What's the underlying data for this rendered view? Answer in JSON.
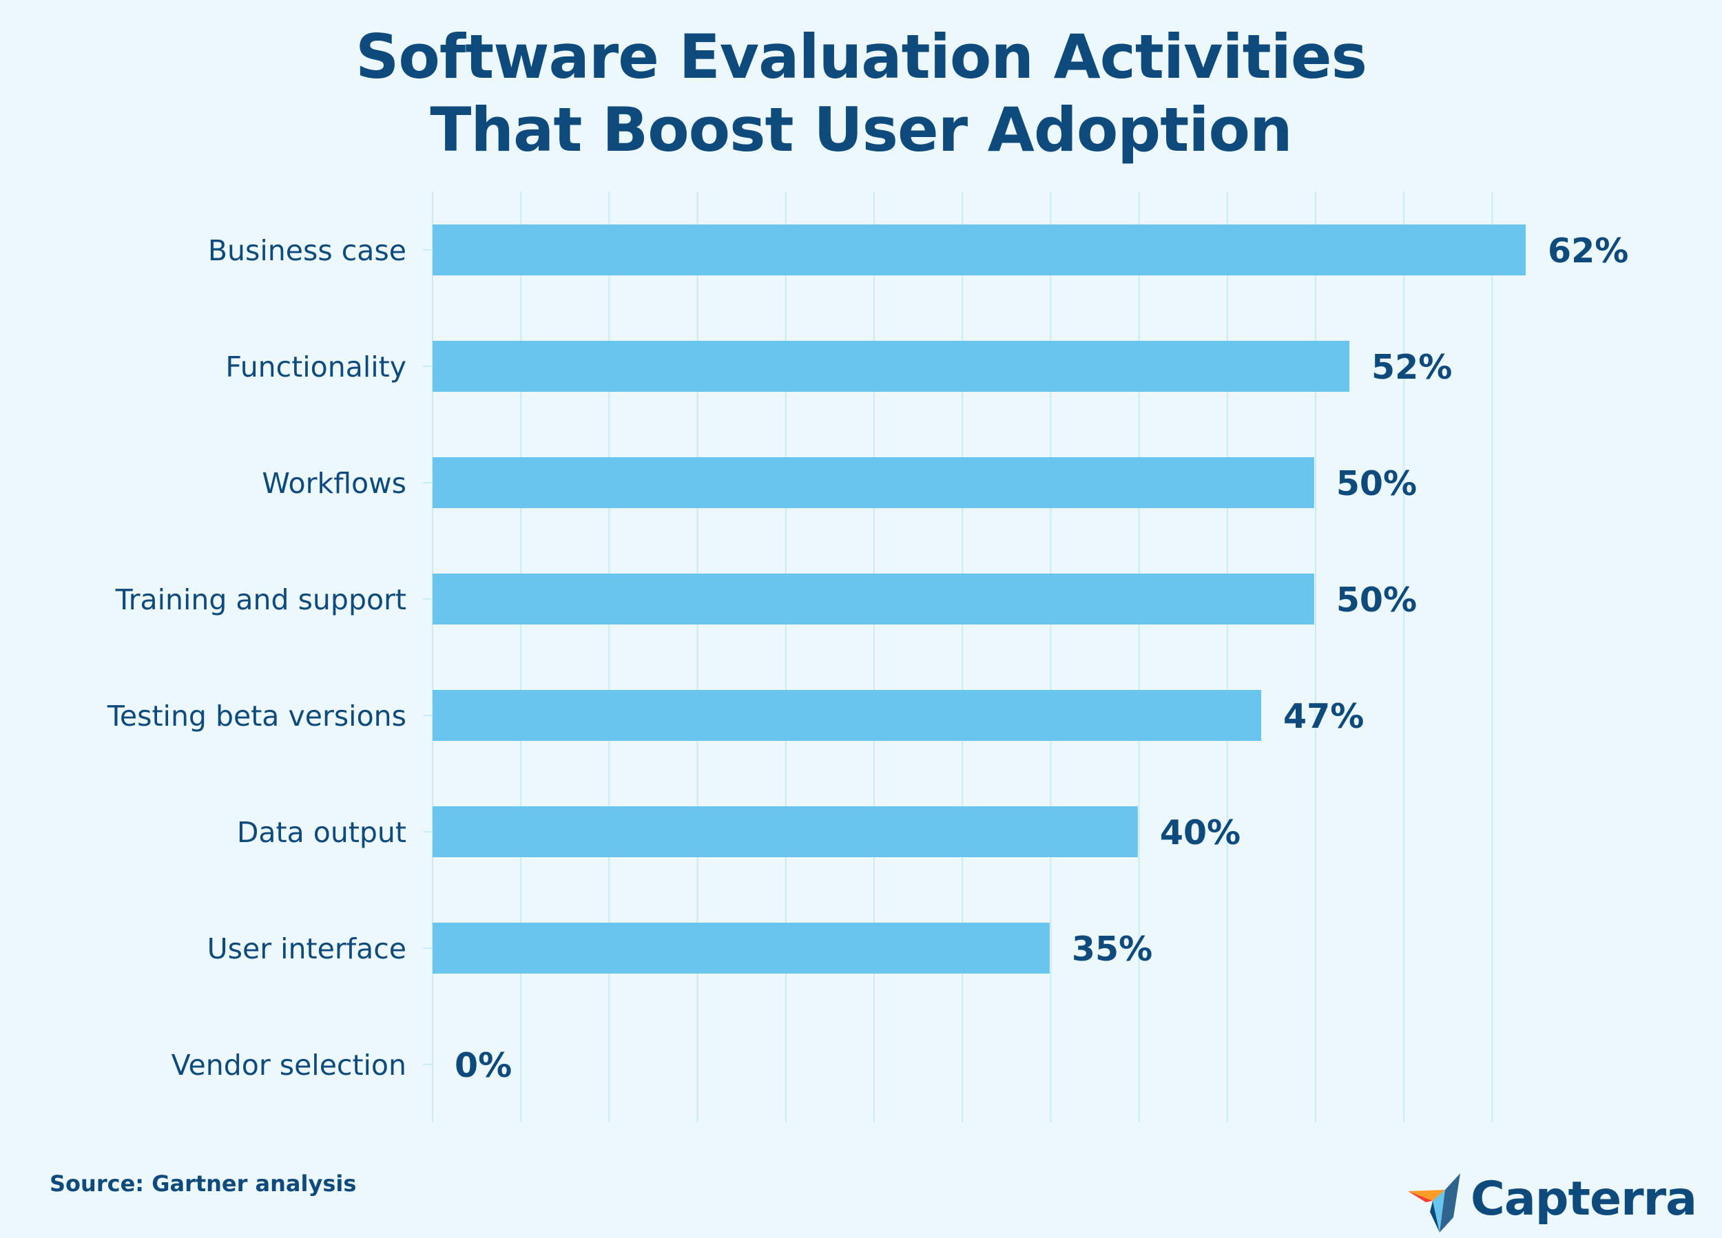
{
  "title": {
    "line1": "Software Evaluation Activities",
    "line2": "That Boost User Adoption"
  },
  "source": "Source: Gartner analysis",
  "logo": {
    "text": "Capterra",
    "icon": "capterra-arrow-icon"
  },
  "colors": {
    "background": "#ecf8fc",
    "bar": "#69c5ed",
    "text": "#0e4a7b",
    "grid": "#c8ebf5"
  },
  "chart_data": {
    "type": "bar",
    "orientation": "horizontal",
    "title": "Software Evaluation Activities That Boost User Adoption",
    "categories": [
      "Business case",
      "Functionality",
      "Workflows",
      "Training and support",
      "Testing beta versions",
      "Data output",
      "User interface",
      "Vendor selection"
    ],
    "values": [
      62,
      52,
      50,
      50,
      47,
      40,
      35,
      0
    ],
    "value_labels": [
      "62%",
      "52%",
      "50%",
      "50%",
      "47%",
      "40%",
      "35%",
      "0%"
    ],
    "xlabel": "",
    "ylabel": "",
    "xlim": [
      0,
      65
    ],
    "grid": true,
    "legend": "none"
  }
}
